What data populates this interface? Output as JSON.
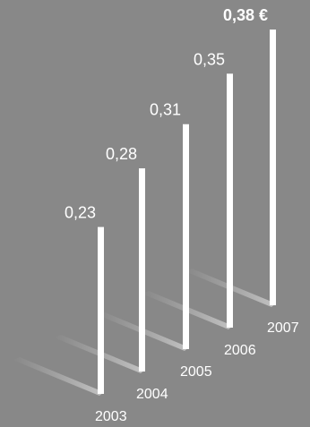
{
  "chart_data": {
    "type": "bar",
    "categories": [
      "2003",
      "2004",
      "2005",
      "2006",
      "2007"
    ],
    "values": [
      0.23,
      0.28,
      0.31,
      0.35,
      0.38
    ],
    "value_labels": [
      "0,23",
      "0,28",
      "0,31",
      "0,35",
      "0,38 €"
    ],
    "highlight_index": 4,
    "ylim": [
      0,
      0.38
    ],
    "title": "",
    "xlabel": "",
    "ylabel": ""
  },
  "colors": {
    "background": "#888888",
    "bar": "#ffffff",
    "text": "#ffffff",
    "shadow": "#b8b8b8"
  }
}
